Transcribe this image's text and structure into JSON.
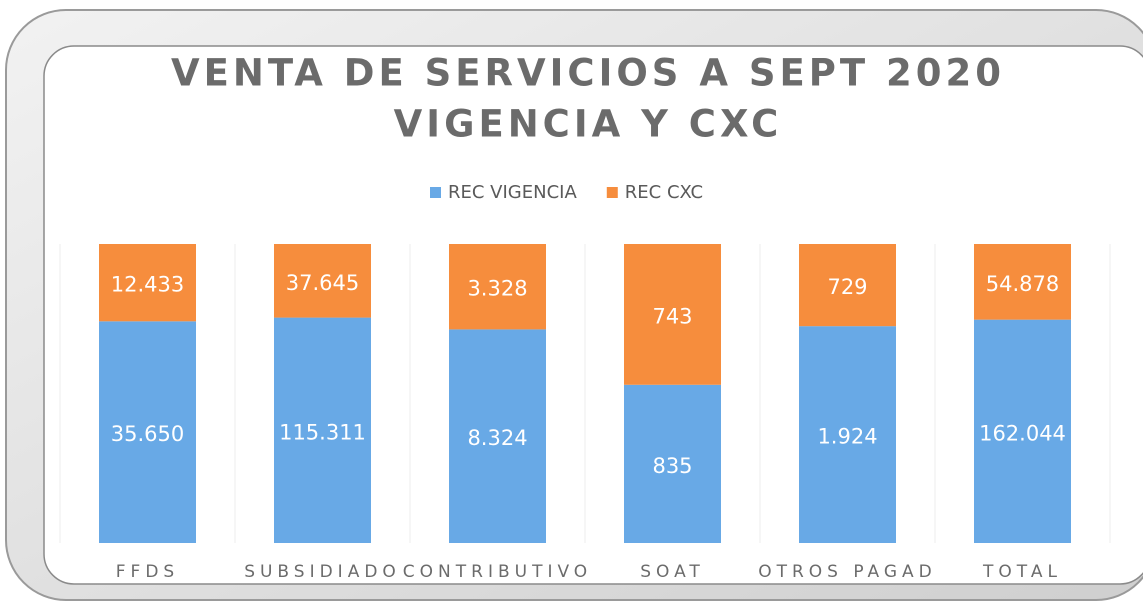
{
  "chart_data": {
    "type": "bar",
    "stacked": "percent",
    "title": [
      "VENTA DE SERVICIOS A SEPT 2020",
      "VIGENCIA Y CXC"
    ],
    "categories": [
      "FFDS",
      "SUBSIDIADO",
      "CONTRIBUTIVO",
      "SOAT",
      "OTROS PAGAD",
      "TOTAL"
    ],
    "legend": "top",
    "series": [
      {
        "name": "REC VIGENCIA",
        "color": "#68a9e6",
        "values": [
          35650,
          115311,
          8324,
          835,
          1924,
          162044
        ],
        "value_labels": [
          "35.650",
          "115.311",
          "8.324",
          "835",
          "1.924",
          "162.044"
        ]
      },
      {
        "name": "REC CXC",
        "color": "#f68d3d",
        "values": [
          12433,
          37645,
          3328,
          743,
          729,
          54878
        ],
        "value_labels": [
          "12.433",
          "37.645",
          "3.328",
          "743",
          "729",
          "54.878"
        ]
      }
    ]
  }
}
